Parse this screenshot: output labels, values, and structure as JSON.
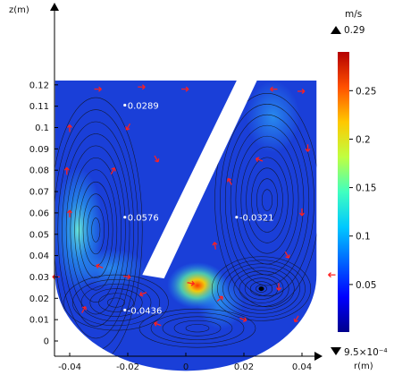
{
  "chart_data": {
    "type": "heatmap",
    "title": "",
    "xlabel": "r(m)",
    "ylabel": "z(m)",
    "xlim": [
      -0.05,
      0.05
    ],
    "ylim": [
      -0.002,
      0.123
    ],
    "x_ticks": [
      "-0.04",
      "-0.02",
      "0",
      "0.02",
      "0.04"
    ],
    "x_tick_values": [
      -0.04,
      -0.02,
      0,
      0.02,
      0.04
    ],
    "y_ticks": [
      "0",
      "0.01",
      "0.02",
      "0.03",
      "0.04",
      "0.05",
      "0.06",
      "0.07",
      "0.08",
      "0.09",
      "0.1",
      "0.11",
      "0.12"
    ],
    "y_tick_values": [
      0,
      0.01,
      0.02,
      0.03,
      0.04,
      0.05,
      0.06,
      0.07,
      0.08,
      0.09,
      0.1,
      0.11,
      0.12
    ],
    "colorbar": {
      "unit": "m/s",
      "max_label": "0.29",
      "min_label": "9.5×10⁻⁴",
      "max": 0.29,
      "min": 0.00095,
      "ticks": [
        "0.25",
        "0.2",
        "0.15",
        "0.1",
        "0.05"
      ],
      "tick_values": [
        0.25,
        0.2,
        0.15,
        0.1,
        0.05
      ],
      "colormap": [
        "#00008c",
        "#0000ff",
        "#0064ff",
        "#00c8ff",
        "#40ffc0",
        "#c0ff40",
        "#ffc800",
        "#ff5000",
        "#b40000"
      ]
    },
    "annotations": [
      {
        "label": "0.0289",
        "r": -0.021,
        "z": 0.1105
      },
      {
        "label": "0.0576",
        "r": -0.021,
        "z": 0.058
      },
      {
        "label": "-0.0321",
        "r": 0.0175,
        "z": 0.058
      },
      {
        "label": "-0.0436",
        "r": -0.021,
        "z": 0.0145
      }
    ],
    "domain": {
      "outer_radius": 0.045,
      "top": 0.122,
      "bowl_center_z": 0.031,
      "baffle": {
        "bottom_left": [
          -0.015,
          0.031
        ],
        "bottom_right": [
          -0.0075,
          0.031
        ],
        "top_left": [
          0.0175,
          0.122
        ],
        "top_right": [
          0.0245,
          0.122
        ]
      }
    },
    "colors": {
      "field": "#1a3fd8",
      "streamline": "#111111",
      "arrow": "#ff2020"
    }
  }
}
